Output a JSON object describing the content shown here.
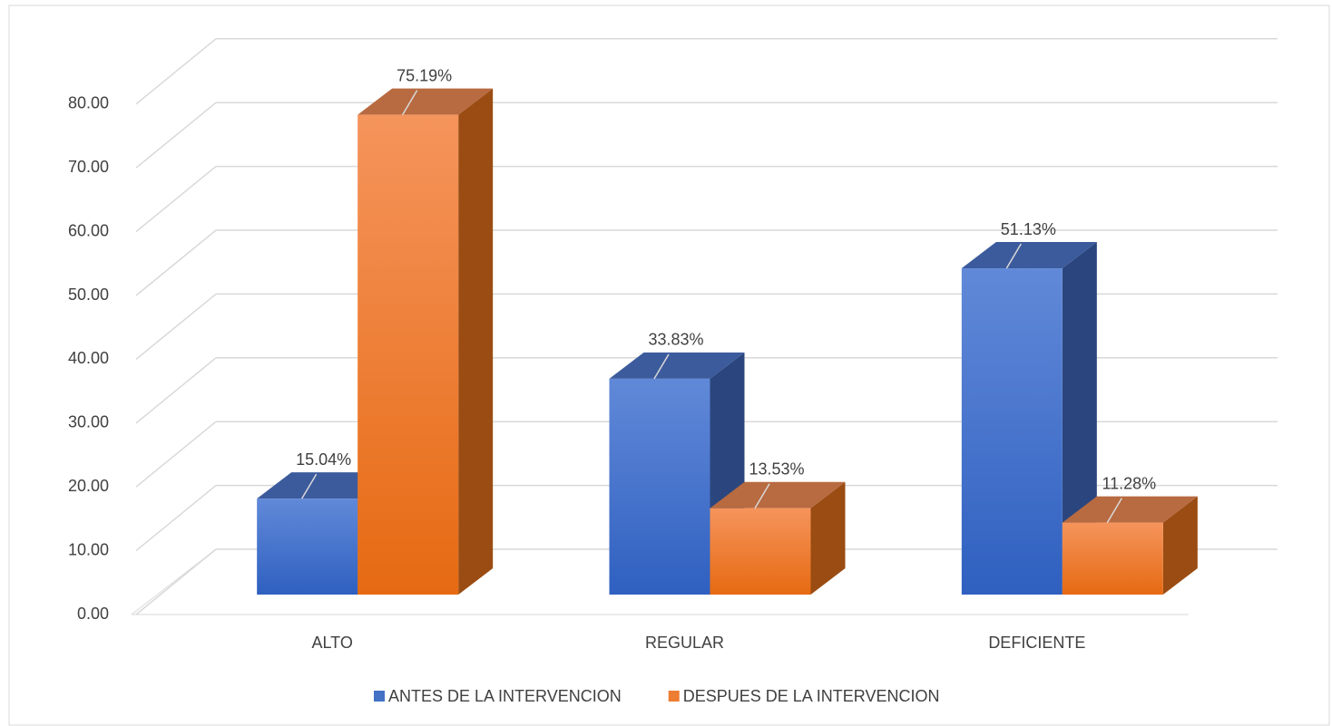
{
  "chart_data": {
    "type": "bar3d",
    "categories": [
      "ALTO",
      "REGULAR",
      "DEFICIENTE"
    ],
    "series": [
      {
        "name": "ANTES DE LA INTERVENCION",
        "color": "#4472c4",
        "values": [
          15.04,
          33.83,
          51.13
        ],
        "value_labels": [
          "15.04%",
          "33.83%",
          "51.13%"
        ]
      },
      {
        "name": "DESPUES DE LA INTERVENCION",
        "color": "#ed7d31",
        "values": [
          75.19,
          13.53,
          11.28
        ],
        "value_labels": [
          "75.19%",
          "13.53%",
          "11.28%"
        ]
      }
    ],
    "ylim": [
      0,
      80
    ],
    "yticks": [
      {
        "value": 0,
        "label": "0.00"
      },
      {
        "value": 10,
        "label": "10.00"
      },
      {
        "value": 20,
        "label": "20.00"
      },
      {
        "value": 30,
        "label": "30.00"
      },
      {
        "value": 40,
        "label": "40.00"
      },
      {
        "value": 50,
        "label": "50.00"
      },
      {
        "value": 60,
        "label": "60.00"
      },
      {
        "value": 70,
        "label": "70.00"
      },
      {
        "value": 80,
        "label": "80.00"
      }
    ],
    "grid": true,
    "legend": "bottom"
  }
}
